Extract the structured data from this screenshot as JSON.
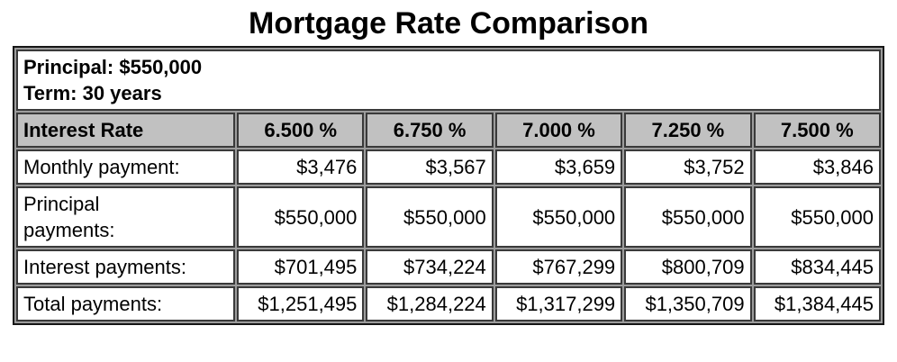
{
  "page": {
    "title": "Mortgage Rate Comparison"
  },
  "loan_info": {
    "principal": "Principal: $550,000",
    "term": "Term: 30 years"
  },
  "table": {
    "header": {
      "label": "Interest Rate",
      "rates": [
        "6.500 %",
        "6.750 %",
        "7.000 %",
        "7.250 %",
        "7.500 %"
      ]
    },
    "rows": [
      {
        "label": "Monthly payment:",
        "values": [
          "$3,476",
          "$3,567",
          "$3,659",
          "$3,752",
          "$3,846"
        ]
      },
      {
        "label": "Principal\npayments:",
        "values": [
          "$550,000",
          "$550,000",
          "$550,000",
          "$550,000",
          "$550,000"
        ]
      },
      {
        "label": "Interest payments:",
        "values": [
          "$701,495",
          "$734,224",
          "$767,299",
          "$800,709",
          "$834,445"
        ]
      },
      {
        "label": "Total payments:",
        "values": [
          "$1,251,495",
          "$1,284,224",
          "$1,317,299",
          "$1,350,709",
          "$1,384,445"
        ]
      }
    ]
  },
  "colors": {
    "background": "#ffffff",
    "text": "#000000",
    "header_bg": "#c1c1c1",
    "cell_border": "#3a3a3a",
    "outer_border": "#161616",
    "grid_gap": "#9c9c9c"
  }
}
